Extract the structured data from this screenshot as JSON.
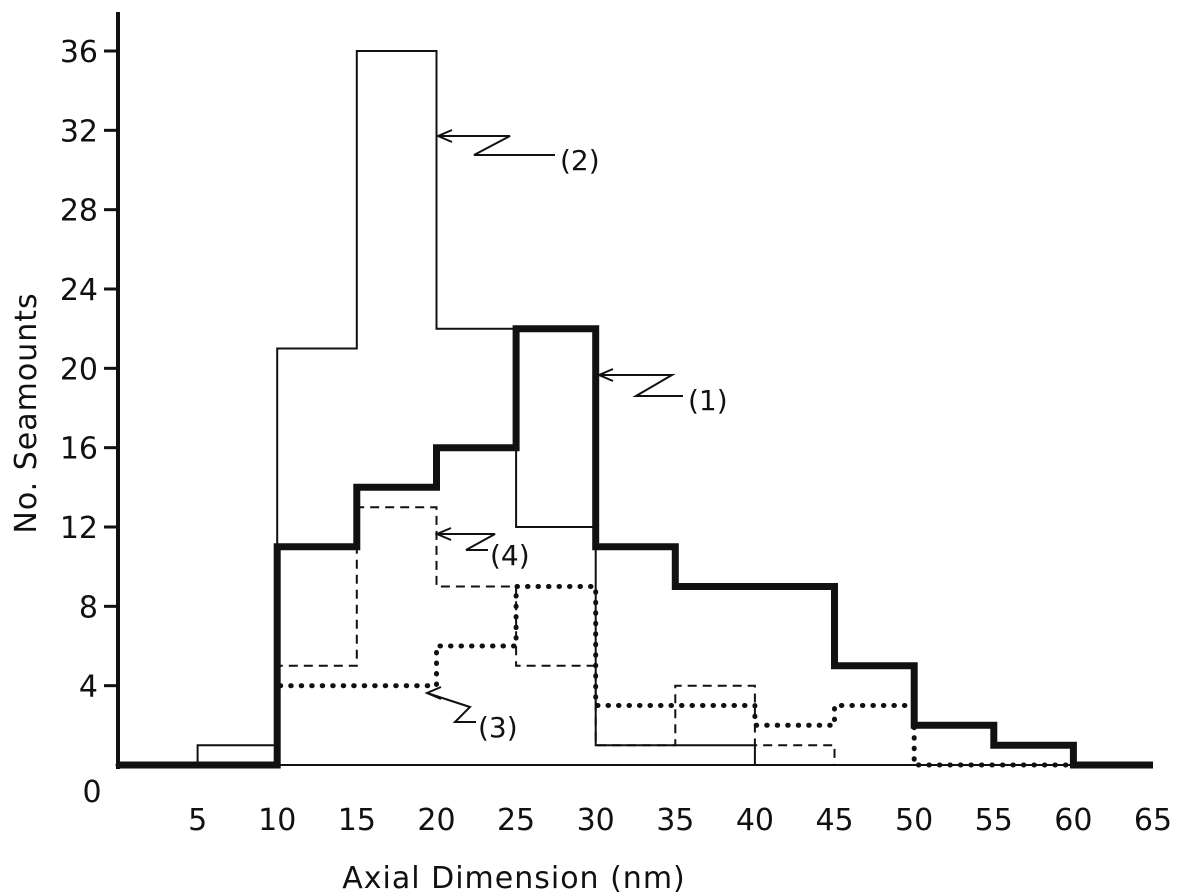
{
  "chart_data": {
    "type": "step",
    "title": "",
    "xlabel": "Axial Dimension (nm)",
    "ylabel": "No. Seamounts",
    "xlim": [
      0,
      65
    ],
    "ylim": [
      0,
      36
    ],
    "x_ticks": [
      "0",
      "5",
      "10",
      "15",
      "20",
      "25",
      "30",
      "35",
      "40",
      "45",
      "50",
      "55",
      "60",
      "65"
    ],
    "y_ticks": [
      "4",
      "8",
      "12",
      "16",
      "20",
      "24",
      "28",
      "32",
      "36"
    ],
    "bin_edges": [
      0,
      5,
      10,
      15,
      20,
      25,
      30,
      35,
      40,
      45,
      50,
      55,
      60,
      65
    ],
    "grid": false,
    "series": [
      {
        "name": "(1)",
        "style": "thick-solid",
        "values": [
          0,
          0,
          11,
          14,
          16,
          22,
          11,
          9,
          9,
          5,
          2,
          1,
          0
        ]
      },
      {
        "name": "(2)",
        "style": "thin-solid",
        "values": [
          0,
          1,
          21,
          36,
          22,
          12,
          1,
          1,
          0,
          0,
          0,
          0,
          0
        ]
      },
      {
        "name": "(3)",
        "style": "dotted",
        "values": [
          0,
          0,
          4,
          4,
          6,
          9,
          3,
          3,
          2,
          3,
          0,
          0,
          0
        ]
      },
      {
        "name": "(4)",
        "style": "dashed",
        "values": [
          0,
          0,
          5,
          13,
          9,
          5,
          1,
          4,
          1,
          0,
          0,
          0,
          0
        ]
      }
    ]
  }
}
